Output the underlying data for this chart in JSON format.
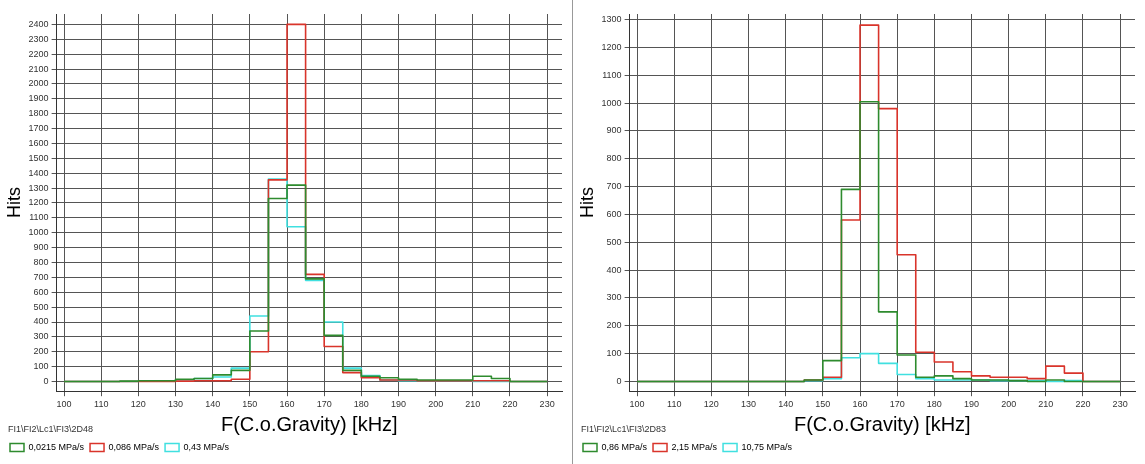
{
  "chart_data": [
    {
      "type": "histogram",
      "xlabel": "F(C.o.Gravity) [kHz]",
      "ylabel": "Hits",
      "annotations": [
        "FI1\\FI2\\Lc1\\FI3\\2D48"
      ],
      "bins": [
        100,
        105,
        110,
        115,
        120,
        125,
        130,
        135,
        140,
        145,
        150,
        155,
        160,
        165,
        170,
        175,
        180,
        185,
        190,
        195,
        200,
        205,
        210,
        215,
        220,
        225,
        230
      ],
      "series": [
        {
          "name": "0,0215 MPa/s",
          "color": "#2e8b2e",
          "values": [
            0,
            0,
            0,
            3,
            5,
            5,
            15,
            20,
            45,
            75,
            340,
            1230,
            1320,
            690,
            310,
            75,
            35,
            25,
            15,
            10,
            10,
            10,
            35,
            20,
            0,
            0
          ]
        },
        {
          "name": "0,086 MPa/s",
          "color": "#d9342b",
          "values": [
            0,
            0,
            0,
            0,
            0,
            0,
            3,
            5,
            5,
            15,
            200,
            1355,
            2400,
            720,
            235,
            60,
            25,
            10,
            10,
            5,
            5,
            5,
            5,
            5,
            0,
            0
          ]
        },
        {
          "name": "0,43 MPa/s",
          "color": "#40e0e0",
          "values": [
            0,
            0,
            0,
            0,
            3,
            5,
            10,
            20,
            30,
            90,
            440,
            1360,
            1040,
            680,
            400,
            90,
            40,
            10,
            5,
            5,
            5,
            5,
            0,
            0,
            0,
            0
          ]
        }
      ],
      "xlim": [
        98,
        234
      ],
      "xticks": [
        100,
        110,
        120,
        130,
        140,
        150,
        160,
        170,
        180,
        190,
        200,
        210,
        220,
        230
      ],
      "ylim": [
        -65,
        2470
      ],
      "yticks": [
        0,
        100,
        200,
        300,
        400,
        500,
        600,
        700,
        800,
        900,
        1000,
        1100,
        1200,
        1300,
        1400,
        1500,
        1600,
        1700,
        1800,
        1900,
        2000,
        2100,
        2200,
        2300,
        2400
      ],
      "grid": true,
      "legend": "bottom left"
    },
    {
      "type": "histogram",
      "xlabel": "F(C.o.Gravity) [kHz]",
      "ylabel": "Hits",
      "annotations": [
        "FI1\\FI2\\Lc1\\FI3\\2D83"
      ],
      "bins": [
        100,
        105,
        110,
        115,
        120,
        125,
        130,
        135,
        140,
        145,
        150,
        155,
        160,
        165,
        170,
        175,
        180,
        185,
        190,
        195,
        200,
        205,
        210,
        215,
        220,
        225,
        230
      ],
      "series": [
        {
          "name": "0,86 MPa/s",
          "color": "#2e8b2e",
          "values": [
            0,
            0,
            0,
            0,
            0,
            0,
            0,
            0,
            0,
            5,
            75,
            690,
            1005,
            250,
            95,
            15,
            20,
            10,
            5,
            5,
            3,
            0,
            5,
            0,
            0,
            0
          ]
        },
        {
          "name": "2,15 MPa/s",
          "color": "#d9342b",
          "values": [
            0,
            0,
            0,
            0,
            0,
            0,
            0,
            0,
            0,
            5,
            15,
            580,
            1280,
            980,
            455,
            105,
            70,
            35,
            20,
            15,
            15,
            10,
            55,
            30,
            0,
            0
          ]
        },
        {
          "name": "10,75 MPa/s",
          "color": "#40e0e0",
          "values": [
            0,
            0,
            0,
            0,
            0,
            0,
            0,
            0,
            0,
            3,
            10,
            85,
            100,
            65,
            25,
            10,
            5,
            5,
            5,
            3,
            3,
            3,
            0,
            3,
            0,
            0
          ]
        }
      ],
      "xlim": [
        98,
        234
      ],
      "xticks": [
        100,
        110,
        120,
        130,
        140,
        150,
        160,
        170,
        180,
        190,
        200,
        210,
        220,
        230
      ],
      "ylim": [
        -35,
        1320
      ],
      "yticks": [
        0,
        100,
        200,
        300,
        400,
        500,
        600,
        700,
        800,
        900,
        1000,
        1100,
        1200,
        1300
      ],
      "grid": true,
      "legend": "bottom left"
    }
  ]
}
